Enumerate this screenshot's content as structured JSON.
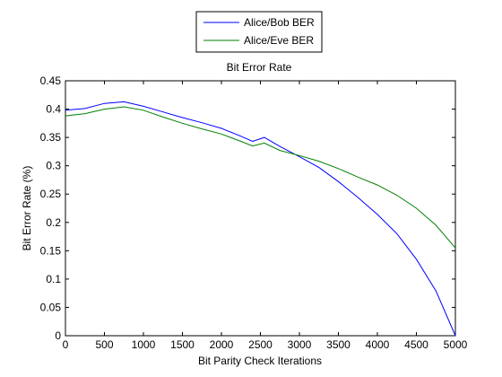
{
  "legend": {
    "entries": [
      {
        "label": "Alice/Bob BER",
        "color": "#0000ff"
      },
      {
        "label": "Alice/Eve BER",
        "color": "#008000"
      }
    ],
    "placement": "top-center, outside plot"
  },
  "chart_data": {
    "type": "line",
    "title": "Bit Error Rate",
    "xlabel": "Bit Parity Check Iterations",
    "ylabel": "Bit Error Rate (%)",
    "xlim": [
      0,
      5000
    ],
    "ylim": [
      0,
      0.45
    ],
    "xticks": [
      0,
      500,
      1000,
      1500,
      2000,
      2500,
      3000,
      3500,
      4000,
      4500,
      5000
    ],
    "yticks": [
      0,
      0.05,
      0.1,
      0.15,
      0.2,
      0.25,
      0.3,
      0.35,
      0.4,
      0.45
    ],
    "grid": false,
    "series": [
      {
        "name": "Alice/Bob BER",
        "color": "#0000ff",
        "x": [
          0,
          250,
          500,
          750,
          1000,
          1250,
          1500,
          1750,
          2000,
          2250,
          2400,
          2550,
          2750,
          3000,
          3250,
          3500,
          3750,
          4000,
          4250,
          4500,
          4750,
          5000
        ],
        "y": [
          0.398,
          0.401,
          0.41,
          0.413,
          0.405,
          0.395,
          0.385,
          0.376,
          0.366,
          0.352,
          0.343,
          0.35,
          0.334,
          0.316,
          0.297,
          0.272,
          0.244,
          0.214,
          0.18,
          0.135,
          0.079,
          0.0
        ]
      },
      {
        "name": "Alice/Eve BER",
        "color": "#008000",
        "x": [
          0,
          250,
          500,
          750,
          1000,
          1250,
          1500,
          1750,
          2000,
          2250,
          2400,
          2550,
          2750,
          3000,
          3250,
          3500,
          3750,
          4000,
          4250,
          4500,
          4750,
          5000
        ],
        "y": [
          0.388,
          0.392,
          0.4,
          0.404,
          0.398,
          0.386,
          0.375,
          0.365,
          0.356,
          0.343,
          0.335,
          0.34,
          0.327,
          0.318,
          0.308,
          0.295,
          0.28,
          0.266,
          0.248,
          0.225,
          0.195,
          0.155
        ]
      }
    ]
  }
}
